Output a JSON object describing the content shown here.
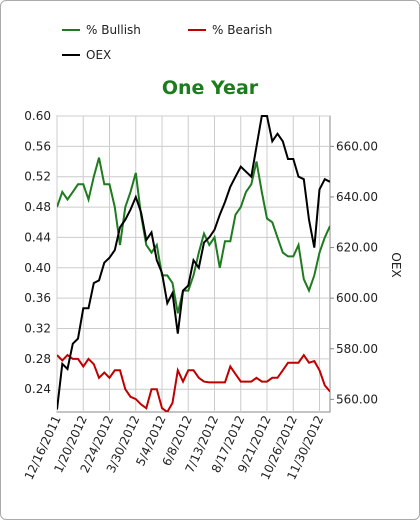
{
  "chart_data": {
    "type": "line",
    "title": "One Year",
    "categories": [
      "12/16/2011",
      null,
      null,
      null,
      null,
      "1/20/2012",
      null,
      null,
      null,
      null,
      "2/24/2012",
      null,
      null,
      null,
      null,
      "3/30/2012",
      null,
      null,
      null,
      null,
      "5/4/2012",
      null,
      null,
      null,
      null,
      "6/8/2012",
      null,
      null,
      null,
      null,
      "7/13/2012",
      null,
      null,
      null,
      null,
      "8/17/2012",
      null,
      null,
      null,
      null,
      "9/21/2012",
      null,
      null,
      null,
      null,
      "10/26/2012",
      null,
      null,
      null,
      null,
      "11/30/2012",
      null,
      null
    ],
    "series": [
      {
        "name": "% Bullish",
        "color": "#1e7b1e",
        "values": [
          0.48,
          0.5,
          0.49,
          0.5,
          0.51,
          0.51,
          0.49,
          0.52,
          0.545,
          0.51,
          0.51,
          0.48,
          0.43,
          0.48,
          0.5,
          0.525,
          0.47,
          0.43,
          0.42,
          0.43,
          0.39,
          0.39,
          0.38,
          0.34,
          0.37,
          0.37,
          0.39,
          0.42,
          0.445,
          0.43,
          0.44,
          0.4,
          0.435,
          0.435,
          0.47,
          0.48,
          0.5,
          0.51,
          0.54,
          0.5,
          0.465,
          0.46,
          0.44,
          0.42,
          0.415,
          0.415,
          0.43,
          0.385,
          0.37,
          0.39,
          0.42,
          0.44,
          0.455
        ]
      },
      {
        "name": "% Bearish",
        "color": "#c00000",
        "values": [
          0.285,
          0.278,
          0.285,
          0.28,
          0.28,
          0.27,
          0.28,
          0.273,
          0.255,
          0.262,
          0.255,
          0.265,
          0.265,
          0.24,
          0.23,
          0.227,
          0.22,
          0.215,
          0.24,
          0.24,
          0.215,
          0.21,
          0.222,
          0.265,
          0.25,
          0.265,
          0.265,
          0.255,
          0.25,
          0.249,
          0.249,
          0.249,
          0.249,
          0.27,
          0.26,
          0.25,
          0.25,
          0.25,
          0.255,
          0.25,
          0.25,
          0.255,
          0.255,
          0.265,
          0.275,
          0.275,
          0.275,
          0.285,
          0.275,
          0.277,
          0.265,
          0.245,
          0.237
        ]
      },
      {
        "name": "OEX",
        "color": "#000000",
        "axis": "y2",
        "values": [
          556,
          574,
          572,
          582,
          584,
          596,
          596,
          606,
          607,
          614,
          616,
          619,
          628,
          631,
          635,
          640,
          634,
          623,
          626,
          615,
          610,
          598,
          602,
          586,
          603,
          605,
          615,
          612,
          622,
          624,
          627,
          633,
          638,
          644,
          648,
          652,
          650,
          648,
          660,
          672,
          672,
          662,
          665,
          662,
          655,
          655,
          648,
          647,
          631,
          620,
          643,
          647,
          646
        ]
      }
    ],
    "ylim": [
      0.21,
      0.6
    ],
    "yticks": [
      0.24,
      0.28,
      0.32,
      0.36,
      {
        "value": 0.4,
        "label": "0.40"
      },
      0.44,
      0.48,
      0.52,
      0.56,
      {
        "value": 0.6,
        "label": "0.60"
      }
    ],
    "y2lim": [
      555,
      672
    ],
    "y2ticks": [
      {
        "value": 560,
        "label": "560.00"
      },
      {
        "value": 580,
        "label": "580.00"
      },
      {
        "value": 600,
        "label": "600.00"
      },
      {
        "value": 620,
        "label": "620.00"
      },
      {
        "value": 640,
        "label": "640.00"
      },
      {
        "value": 660,
        "label": "660.00"
      }
    ],
    "y2label": "OEX",
    "grid": true
  }
}
